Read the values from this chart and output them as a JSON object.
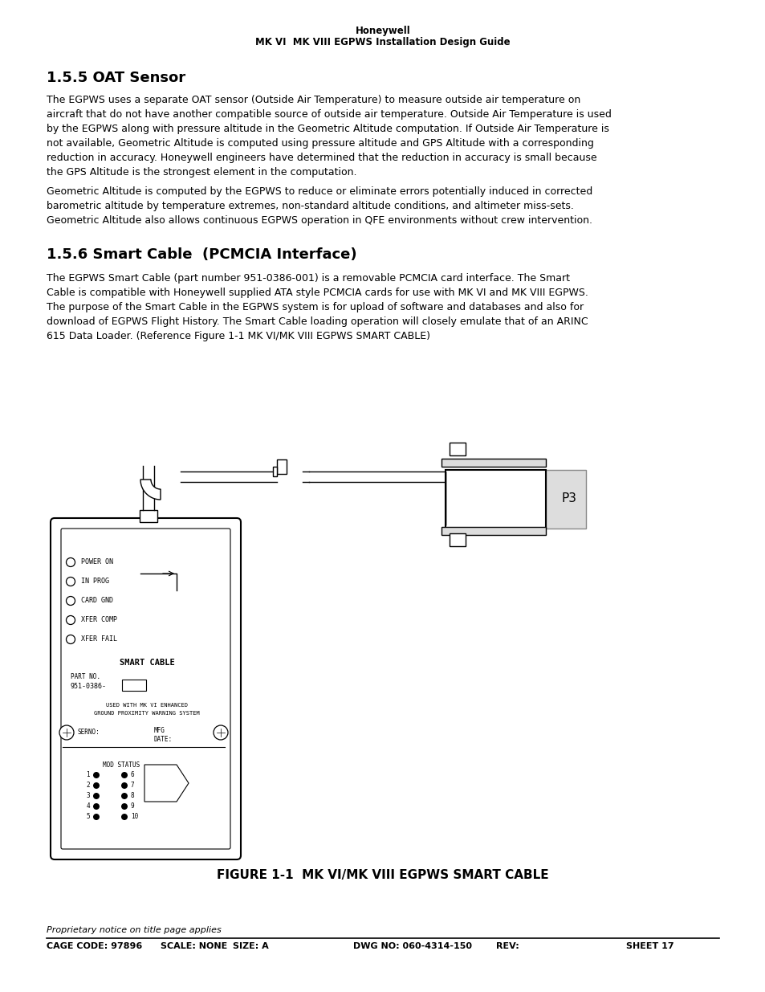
{
  "page_bg": "#ffffff",
  "header_line1": "Honeywell",
  "header_line2": "MK VI  MK VIII EGPWS Installation Design Guide",
  "section1_title": "1.5.5 OAT Sensor",
  "section1_para1": "The EGPWS uses a separate OAT sensor (Outside Air Temperature) to measure outside air temperature on\naircraft that do not have another compatible source of outside air temperature. Outside Air Temperature is used\nby the EGPWS along with pressure altitude in the Geometric Altitude computation. If Outside Air Temperature is\nnot available, Geometric Altitude is computed using pressure altitude and GPS Altitude with a corresponding\nreduction in accuracy. Honeywell engineers have determined that the reduction in accuracy is small because\nthe GPS Altitude is the strongest element in the computation.",
  "section1_para2": "Geometric Altitude is computed by the EGPWS to reduce or eliminate errors potentially induced in corrected\nbarometric altitude by temperature extremes, non-standard altitude conditions, and altimeter miss-sets.\nGeometric Altitude also allows continuous EGPWS operation in QFE environments without crew intervention.",
  "section2_title": "1.5.6 Smart Cable  (PCMCIA Interface)",
  "section2_para1": "The EGPWS Smart Cable (part number 951-0386-001) is a removable PCMCIA card interface. The Smart\nCable is compatible with Honeywell supplied ATA style PCMCIA cards for use with MK VI and MK VIII EGPWS.\nThe purpose of the Smart Cable in the EGPWS system is for upload of software and databases and also for\ndownload of EGPWS Flight History. The Smart Cable loading operation will closely emulate that of an ARINC\n615 Data Loader. (Reference Figure 1-1 MK VI/MK VIII EGPWS SMART CABLE)",
  "figure_caption": "FIGURE 1-1  MK VI/MK VIII EGPWS SMART CABLE",
  "footer_proprietary": "Proprietary notice on title page applies",
  "footer_cage": "CAGE CODE: 97896",
  "footer_scale": "SCALE: NONE",
  "footer_size": "SIZE: A",
  "footer_dwg": "DWG NO: 060-4314-150",
  "footer_rev": "REV:",
  "footer_sheet": "SHEET 17",
  "text_color": "#000000"
}
